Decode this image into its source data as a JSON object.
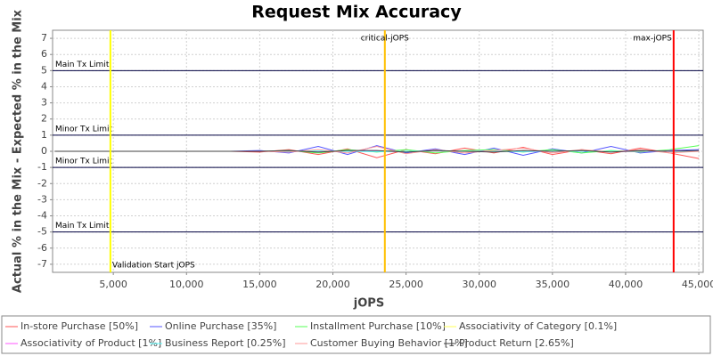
{
  "chart_data": {
    "type": "line",
    "title": "Request Mix Accuracy",
    "x_label": "jOPS",
    "y_label": "Actual % in the Mix - Expected % in the Mix",
    "x": [
      1000,
      3000,
      5000,
      7000,
      9000,
      11000,
      13000,
      15000,
      17000,
      19000,
      21000,
      23000,
      25000,
      27000,
      29000,
      31000,
      33000,
      35000,
      37000,
      39000,
      41000,
      43000,
      45000
    ],
    "series": [
      {
        "name": "In-store Purchase [50%]",
        "color": "#ff5555",
        "values": [
          0,
          0,
          0,
          0,
          0,
          0,
          0,
          -0.05,
          0.1,
          -0.2,
          0.15,
          -0.4,
          0.1,
          -0.15,
          0.2,
          -0.1,
          0.25,
          -0.2,
          0.1,
          -0.15,
          0.2,
          -0.1,
          -0.45
        ]
      },
      {
        "name": "Online Purchase [35%]",
        "color": "#5555ff",
        "values": [
          0,
          0,
          0,
          0,
          0,
          0,
          0,
          0.05,
          -0.1,
          0.3,
          -0.2,
          0.35,
          -0.1,
          0.15,
          -0.2,
          0.2,
          -0.25,
          0.15,
          -0.1,
          0.3,
          -0.1,
          0.05,
          0.1
        ]
      },
      {
        "name": "Installment Purchase [10%]",
        "color": "#55ff55",
        "values": [
          0,
          0,
          0,
          0,
          0,
          0,
          0,
          0,
          0.05,
          -0.1,
          0.1,
          -0.05,
          0.1,
          -0.1,
          0.05,
          0.1,
          -0.05,
          0.1,
          -0.1,
          0.05,
          -0.05,
          0.1,
          0.35
        ]
      },
      {
        "name": "Associativity of Category [0.1%]",
        "color": "#ffff55",
        "values": [
          0,
          0,
          0,
          0,
          0,
          0,
          0,
          0,
          0,
          0,
          0,
          0,
          0,
          0,
          0,
          0,
          0,
          0,
          0,
          0,
          0,
          0,
          0
        ]
      },
      {
        "name": "Associativity of Product [1%]",
        "color": "#ff55ff",
        "values": [
          0,
          0,
          0,
          0,
          0,
          0,
          0,
          0,
          0.02,
          -0.02,
          0.02,
          0,
          -0.02,
          0.02,
          0,
          0.02,
          -0.02,
          0,
          0.02,
          -0.02,
          0,
          0.02,
          0
        ]
      },
      {
        "name": "Business Report [0.25%]",
        "color": "#55ffff",
        "values": [
          0,
          0,
          0,
          0,
          0,
          0,
          0,
          0,
          0,
          0.02,
          0,
          -0.02,
          0,
          0.02,
          0,
          0,
          -0.02,
          0.02,
          0,
          0,
          0.02,
          0,
          0
        ]
      },
      {
        "name": "Customer Buying Behavior [1%]",
        "color": "#ff9999",
        "values": [
          0,
          0,
          0,
          0,
          0,
          0,
          0,
          0,
          -0.05,
          0.1,
          -0.1,
          0.3,
          -0.15,
          0.1,
          -0.1,
          0.05,
          0.2,
          -0.1,
          0.1,
          -0.05,
          0.1,
          -0.1,
          0
        ]
      },
      {
        "name": "Product Return [2.65%]",
        "color": "#404040",
        "values": [
          0,
          0,
          0,
          0,
          0,
          0,
          0,
          0,
          0.05,
          -0.05,
          0.05,
          0.05,
          -0.05,
          0.05,
          0,
          -0.05,
          0.05,
          0,
          0.05,
          -0.05,
          0.05,
          0,
          0.05
        ]
      }
    ],
    "xlim": [
      850,
      45300
    ],
    "ylim": [
      -7.5,
      7.5
    ],
    "xticks": [
      {
        "value": 5000,
        "label": "5,000"
      },
      {
        "value": 10000,
        "label": "10,000"
      },
      {
        "value": 15000,
        "label": "15,000"
      },
      {
        "value": 20000,
        "label": "20,000"
      },
      {
        "value": 25000,
        "label": "25,000"
      },
      {
        "value": 30000,
        "label": "30,000"
      },
      {
        "value": 35000,
        "label": "35,000"
      },
      {
        "value": 40000,
        "label": "40,000"
      },
      {
        "value": 45000,
        "label": "45,000"
      }
    ],
    "yticks": [
      -7,
      -6,
      -5,
      -4,
      -3,
      -2,
      -1,
      0,
      1,
      2,
      3,
      4,
      5,
      6,
      7
    ],
    "grid": true,
    "limits": [
      {
        "value": 5,
        "label": "Main Tx Limit"
      },
      {
        "value": 1,
        "label": "Minor Tx Limit"
      },
      {
        "value": -1,
        "label": "Minor Tx Limit"
      },
      {
        "value": -5,
        "label": "Main Tx Limit"
      }
    ],
    "markers": [
      {
        "value": 4800,
        "label": "Validation Start jOPS",
        "color": "#ffff00"
      },
      {
        "value": 23550,
        "label": "critical-jOPS",
        "color": "#ffc000"
      },
      {
        "value": 43280,
        "label": "max-jOPS",
        "color": "#ff0000"
      }
    ]
  }
}
